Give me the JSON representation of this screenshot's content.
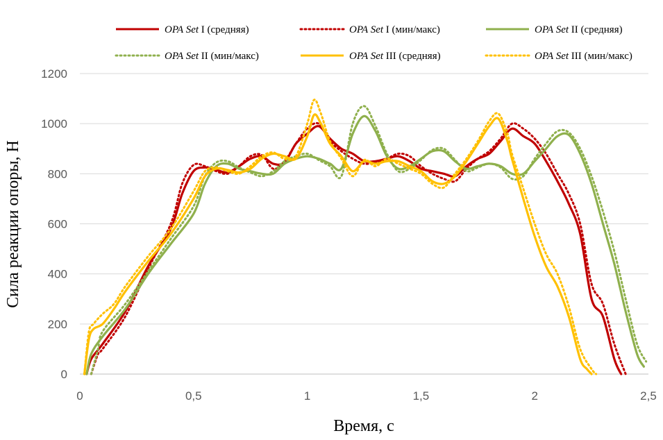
{
  "chart_data": {
    "type": "line",
    "title": "",
    "xlabel": "Время, с",
    "ylabel": "Сила реакции опоры, Н",
    "xlim": [
      0,
      2.5
    ],
    "ylim": [
      0,
      1200
    ],
    "x_ticks": [
      "0",
      "0,5",
      "1",
      "1,5",
      "2",
      "2,5"
    ],
    "y_ticks": [
      "0",
      "200",
      "400",
      "600",
      "800",
      "1000",
      "1200"
    ],
    "grid": "horizontal",
    "legend_position": "top",
    "series": [
      {
        "name": "OPA Set I (средняя)",
        "name_italic": "OPA Set",
        "name_rest": " I (средняя)",
        "color": "#C00000",
        "style": "solid",
        "points": [
          [
            0.03,
            0
          ],
          [
            0.05,
            60
          ],
          [
            0.1,
            120
          ],
          [
            0.2,
            250
          ],
          [
            0.3,
            430
          ],
          [
            0.4,
            580
          ],
          [
            0.45,
            720
          ],
          [
            0.5,
            810
          ],
          [
            0.55,
            825
          ],
          [
            0.6,
            815
          ],
          [
            0.65,
            805
          ],
          [
            0.7,
            830
          ],
          [
            0.75,
            860
          ],
          [
            0.8,
            870
          ],
          [
            0.85,
            840
          ],
          [
            0.9,
            845
          ],
          [
            0.95,
            920
          ],
          [
            1.0,
            960
          ],
          [
            1.05,
            990
          ],
          [
            1.1,
            940
          ],
          [
            1.15,
            900
          ],
          [
            1.2,
            880
          ],
          [
            1.25,
            850
          ],
          [
            1.3,
            850
          ],
          [
            1.35,
            860
          ],
          [
            1.4,
            870
          ],
          [
            1.45,
            850
          ],
          [
            1.5,
            820
          ],
          [
            1.55,
            810
          ],
          [
            1.6,
            800
          ],
          [
            1.65,
            790
          ],
          [
            1.7,
            830
          ],
          [
            1.75,
            860
          ],
          [
            1.8,
            880
          ],
          [
            1.85,
            930
          ],
          [
            1.9,
            980
          ],
          [
            1.95,
            950
          ],
          [
            2.0,
            920
          ],
          [
            2.05,
            850
          ],
          [
            2.1,
            770
          ],
          [
            2.15,
            680
          ],
          [
            2.2,
            560
          ],
          [
            2.25,
            300
          ],
          [
            2.3,
            230
          ],
          [
            2.35,
            60
          ],
          [
            2.38,
            0
          ]
        ]
      },
      {
        "name": "OPA Set I (мин/макс)",
        "name_italic": "OPA Set",
        "name_rest": " I (мин/макс)",
        "color": "#C00000",
        "style": "dotted",
        "points": [
          [
            0.05,
            0
          ],
          [
            0.08,
            80
          ],
          [
            0.1,
            100
          ],
          [
            0.2,
            230
          ],
          [
            0.3,
            420
          ],
          [
            0.4,
            600
          ],
          [
            0.45,
            760
          ],
          [
            0.5,
            835
          ],
          [
            0.55,
            830
          ],
          [
            0.6,
            810
          ],
          [
            0.65,
            800
          ],
          [
            0.7,
            830
          ],
          [
            0.75,
            870
          ],
          [
            0.8,
            875
          ],
          [
            0.85,
            820
          ],
          [
            0.9,
            850
          ],
          [
            0.95,
            920
          ],
          [
            1.0,
            980
          ],
          [
            1.05,
            1000
          ],
          [
            1.1,
            930
          ],
          [
            1.15,
            890
          ],
          [
            1.2,
            860
          ],
          [
            1.25,
            840
          ],
          [
            1.3,
            845
          ],
          [
            1.35,
            860
          ],
          [
            1.4,
            880
          ],
          [
            1.45,
            870
          ],
          [
            1.5,
            830
          ],
          [
            1.55,
            800
          ],
          [
            1.6,
            780
          ],
          [
            1.65,
            770
          ],
          [
            1.7,
            820
          ],
          [
            1.75,
            860
          ],
          [
            1.8,
            890
          ],
          [
            1.85,
            940
          ],
          [
            1.9,
            1000
          ],
          [
            1.95,
            980
          ],
          [
            2.0,
            940
          ],
          [
            2.05,
            880
          ],
          [
            2.1,
            800
          ],
          [
            2.15,
            720
          ],
          [
            2.2,
            600
          ],
          [
            2.25,
            360
          ],
          [
            2.3,
            280
          ],
          [
            2.35,
            120
          ],
          [
            2.4,
            0
          ]
        ]
      },
      {
        "name": "OPA Set II (средняя)",
        "name_italic": "OPA Set",
        "name_rest": " II (средняя)",
        "color": "#8FB04D",
        "style": "solid",
        "points": [
          [
            0.03,
            0
          ],
          [
            0.05,
            80
          ],
          [
            0.1,
            150
          ],
          [
            0.2,
            260
          ],
          [
            0.3,
            400
          ],
          [
            0.4,
            520
          ],
          [
            0.5,
            640
          ],
          [
            0.55,
            760
          ],
          [
            0.6,
            830
          ],
          [
            0.65,
            840
          ],
          [
            0.7,
            820
          ],
          [
            0.75,
            810
          ],
          [
            0.8,
            800
          ],
          [
            0.85,
            800
          ],
          [
            0.9,
            840
          ],
          [
            0.95,
            860
          ],
          [
            1.0,
            870
          ],
          [
            1.05,
            860
          ],
          [
            1.1,
            840
          ],
          [
            1.15,
            820
          ],
          [
            1.2,
            960
          ],
          [
            1.25,
            1030
          ],
          [
            1.3,
            970
          ],
          [
            1.35,
            870
          ],
          [
            1.4,
            820
          ],
          [
            1.45,
            830
          ],
          [
            1.5,
            860
          ],
          [
            1.55,
            890
          ],
          [
            1.6,
            890
          ],
          [
            1.65,
            850
          ],
          [
            1.7,
            820
          ],
          [
            1.75,
            830
          ],
          [
            1.8,
            840
          ],
          [
            1.85,
            830
          ],
          [
            1.9,
            800
          ],
          [
            1.95,
            800
          ],
          [
            2.0,
            850
          ],
          [
            2.05,
            900
          ],
          [
            2.1,
            950
          ],
          [
            2.15,
            955
          ],
          [
            2.2,
            880
          ],
          [
            2.25,
            760
          ],
          [
            2.3,
            600
          ],
          [
            2.35,
            440
          ],
          [
            2.4,
            250
          ],
          [
            2.45,
            80
          ],
          [
            2.48,
            30
          ]
        ]
      },
      {
        "name": "OPA Set II (мин/макс)",
        "name_italic": "OPA Set",
        "name_rest": " II (мин/макс)",
        "color": "#8FB04D",
        "style": "dotted",
        "points": [
          [
            0.05,
            0
          ],
          [
            0.08,
            100
          ],
          [
            0.1,
            170
          ],
          [
            0.2,
            280
          ],
          [
            0.3,
            410
          ],
          [
            0.4,
            540
          ],
          [
            0.5,
            670
          ],
          [
            0.55,
            790
          ],
          [
            0.6,
            845
          ],
          [
            0.65,
            850
          ],
          [
            0.7,
            825
          ],
          [
            0.75,
            805
          ],
          [
            0.8,
            790
          ],
          [
            0.85,
            810
          ],
          [
            0.9,
            850
          ],
          [
            0.95,
            870
          ],
          [
            1.0,
            880
          ],
          [
            1.05,
            855
          ],
          [
            1.1,
            830
          ],
          [
            1.15,
            790
          ],
          [
            1.2,
            1000
          ],
          [
            1.25,
            1070
          ],
          [
            1.3,
            990
          ],
          [
            1.35,
            880
          ],
          [
            1.4,
            810
          ],
          [
            1.45,
            820
          ],
          [
            1.5,
            855
          ],
          [
            1.55,
            895
          ],
          [
            1.6,
            900
          ],
          [
            1.65,
            855
          ],
          [
            1.7,
            810
          ],
          [
            1.75,
            825
          ],
          [
            1.8,
            840
          ],
          [
            1.85,
            825
          ],
          [
            1.9,
            780
          ],
          [
            1.95,
            790
          ],
          [
            2.0,
            860
          ],
          [
            2.05,
            920
          ],
          [
            2.1,
            970
          ],
          [
            2.15,
            965
          ],
          [
            2.2,
            900
          ],
          [
            2.25,
            790
          ],
          [
            2.3,
            650
          ],
          [
            2.35,
            490
          ],
          [
            2.4,
            300
          ],
          [
            2.45,
            120
          ],
          [
            2.49,
            50
          ]
        ]
      },
      {
        "name": "OPA Set III (средняя)",
        "name_italic": "OPA Set",
        "name_rest": " III (средняя)",
        "color": "#FFC000",
        "style": "solid",
        "points": [
          [
            0.02,
            0
          ],
          [
            0.04,
            140
          ],
          [
            0.06,
            180
          ],
          [
            0.1,
            200
          ],
          [
            0.15,
            260
          ],
          [
            0.2,
            330
          ],
          [
            0.3,
            450
          ],
          [
            0.4,
            560
          ],
          [
            0.5,
            700
          ],
          [
            0.55,
            790
          ],
          [
            0.6,
            820
          ],
          [
            0.65,
            815
          ],
          [
            0.7,
            805
          ],
          [
            0.75,
            820
          ],
          [
            0.8,
            860
          ],
          [
            0.85,
            880
          ],
          [
            0.9,
            870
          ],
          [
            0.95,
            860
          ],
          [
            1.0,
            950
          ],
          [
            1.03,
            1035
          ],
          [
            1.06,
            1000
          ],
          [
            1.1,
            920
          ],
          [
            1.15,
            870
          ],
          [
            1.2,
            810
          ],
          [
            1.25,
            850
          ],
          [
            1.3,
            840
          ],
          [
            1.35,
            850
          ],
          [
            1.4,
            850
          ],
          [
            1.45,
            830
          ],
          [
            1.5,
            810
          ],
          [
            1.55,
            770
          ],
          [
            1.6,
            760
          ],
          [
            1.65,
            790
          ],
          [
            1.7,
            850
          ],
          [
            1.75,
            920
          ],
          [
            1.8,
            990
          ],
          [
            1.84,
            1020
          ],
          [
            1.88,
            930
          ],
          [
            1.9,
            860
          ],
          [
            1.95,
            700
          ],
          [
            2.0,
            550
          ],
          [
            2.05,
            430
          ],
          [
            2.1,
            350
          ],
          [
            2.15,
            230
          ],
          [
            2.2,
            60
          ],
          [
            2.23,
            20
          ],
          [
            2.25,
            0
          ]
        ]
      },
      {
        "name": "OPA Set III (мин/макс)",
        "name_italic": "OPA Set",
        "name_rest": " III (мин/макс)",
        "color": "#FFC000",
        "style": "dotted",
        "points": [
          [
            0.02,
            0
          ],
          [
            0.04,
            170
          ],
          [
            0.06,
            200
          ],
          [
            0.1,
            240
          ],
          [
            0.15,
            280
          ],
          [
            0.2,
            350
          ],
          [
            0.3,
            470
          ],
          [
            0.4,
            580
          ],
          [
            0.5,
            730
          ],
          [
            0.55,
            810
          ],
          [
            0.6,
            825
          ],
          [
            0.65,
            810
          ],
          [
            0.7,
            800
          ],
          [
            0.75,
            830
          ],
          [
            0.8,
            870
          ],
          [
            0.85,
            885
          ],
          [
            0.9,
            860
          ],
          [
            0.95,
            870
          ],
          [
            1.0,
            1000
          ],
          [
            1.03,
            1095
          ],
          [
            1.06,
            1040
          ],
          [
            1.1,
            930
          ],
          [
            1.15,
            860
          ],
          [
            1.2,
            790
          ],
          [
            1.25,
            855
          ],
          [
            1.3,
            830
          ],
          [
            1.35,
            860
          ],
          [
            1.4,
            840
          ],
          [
            1.45,
            820
          ],
          [
            1.5,
            800
          ],
          [
            1.55,
            760
          ],
          [
            1.6,
            745
          ],
          [
            1.65,
            800
          ],
          [
            1.7,
            860
          ],
          [
            1.75,
            930
          ],
          [
            1.8,
            1010
          ],
          [
            1.84,
            1040
          ],
          [
            1.88,
            960
          ],
          [
            1.9,
            880
          ],
          [
            1.95,
            740
          ],
          [
            2.0,
            600
          ],
          [
            2.05,
            480
          ],
          [
            2.1,
            400
          ],
          [
            2.15,
            270
          ],
          [
            2.2,
            100
          ],
          [
            2.25,
            20
          ],
          [
            2.27,
            0
          ]
        ]
      }
    ]
  }
}
